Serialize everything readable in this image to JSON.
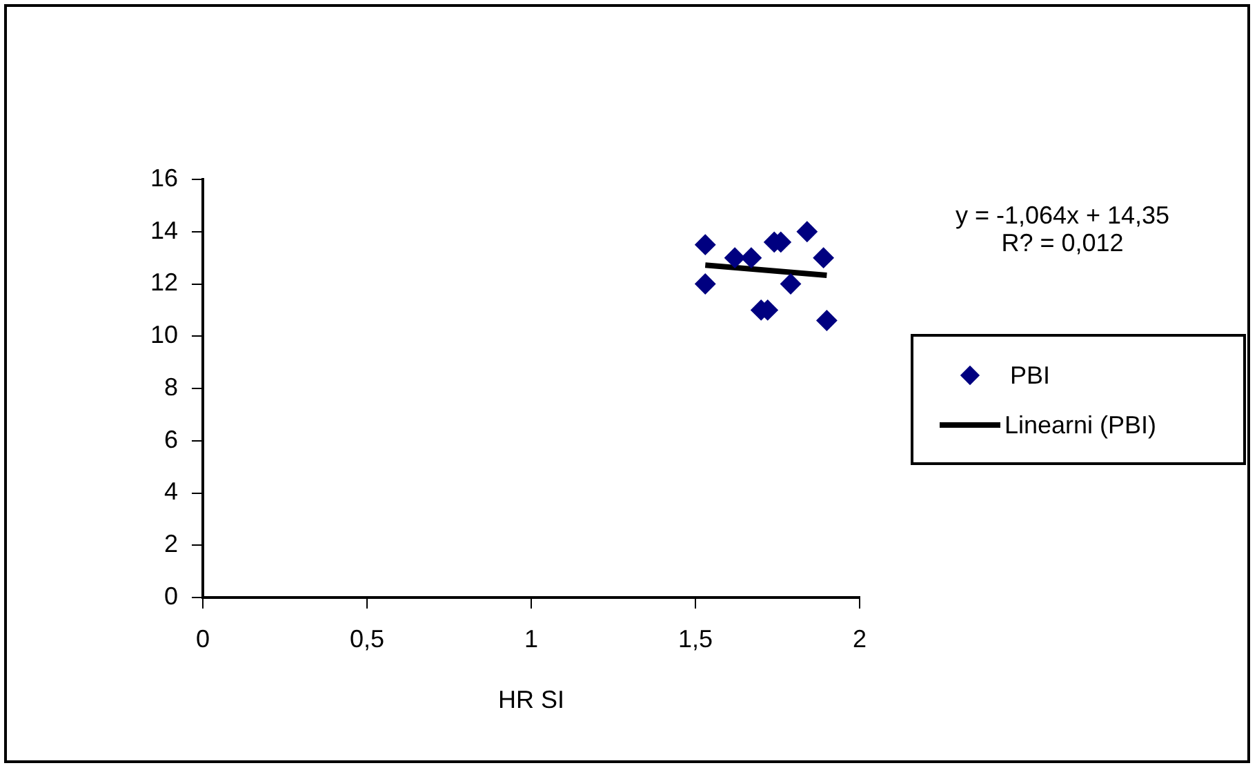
{
  "chart_data": {
    "type": "scatter",
    "xlabel": "HR SI",
    "xlim": [
      0,
      2
    ],
    "xticks": [
      0,
      {
        "value": 0.5,
        "label": "0,5"
      },
      1,
      {
        "value": 1.5,
        "label": "1,5"
      },
      2
    ],
    "ylim": [
      0,
      16
    ],
    "yticks": [
      0,
      2,
      4,
      6,
      8,
      10,
      12,
      14,
      16
    ],
    "grid": false,
    "legend": "right",
    "marker": "diamond",
    "annotations": [
      "y = -1,064x + 14,35",
      "R? = 0,012"
    ],
    "series": [
      {
        "name": "PBI",
        "color": "#000080",
        "x": [
          1.53,
          1.53,
          1.62,
          1.67,
          1.74,
          1.76,
          1.84,
          1.89,
          1.79,
          1.7,
          1.72,
          1.9
        ],
        "values": [
          13.5,
          12.0,
          13.0,
          13.0,
          13.6,
          13.6,
          14.0,
          13.0,
          12.0,
          11.0,
          11.0,
          10.6
        ]
      },
      {
        "name": "Linearni (PBI)",
        "type": "line",
        "color": "#000000",
        "line_style": "solid",
        "marker": "none",
        "x": [
          1.53,
          1.9
        ],
        "values": [
          12.72,
          12.33
        ]
      }
    ]
  }
}
